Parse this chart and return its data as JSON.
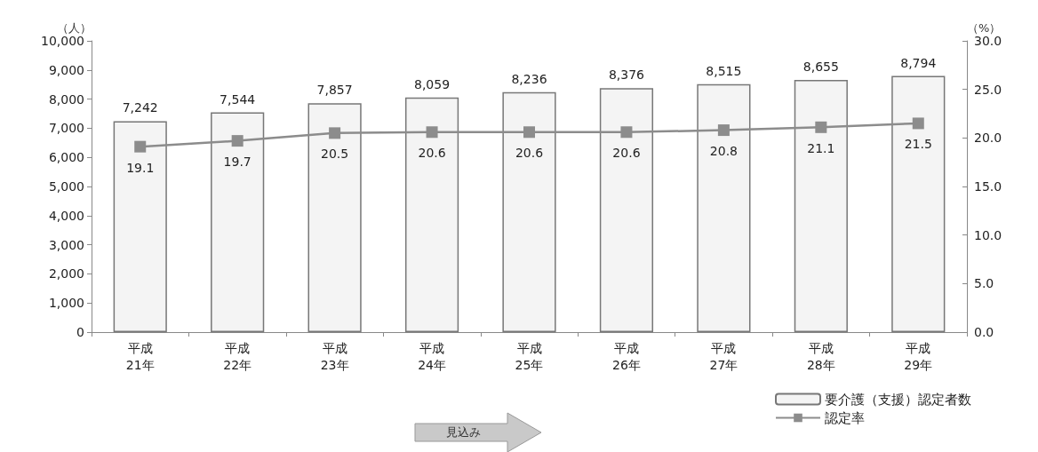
{
  "chart_data": {
    "type": "bar",
    "ylabel": "（人）",
    "y2label": "（%）",
    "categories": [
      "平成\n21年",
      "平成\n22年",
      "平成\n23年",
      "平成\n24年",
      "平成\n25年",
      "平成\n26年",
      "平成\n27年",
      "平成\n28年",
      "平成\n29年"
    ],
    "series": [
      {
        "name": "要介護（支援）認定者数",
        "color": "#f4f4f4",
        "values": [
          7242,
          7544,
          7857,
          8059,
          8236,
          8376,
          8515,
          8655,
          8794
        ],
        "value_labels": [
          "7,242",
          "7,544",
          "7,857",
          "8,059",
          "8,236",
          "8,376",
          "8,515",
          "8,655",
          "8,794"
        ]
      },
      {
        "name": "認定率",
        "type": "line",
        "axis": "y2",
        "color": "#8c8c8c",
        "values": [
          19.1,
          19.7,
          20.5,
          20.6,
          20.6,
          20.6,
          20.8,
          21.1,
          21.5
        ]
      }
    ],
    "data_labels": true,
    "marker": "square",
    "legend": "bottom right",
    "grid": false,
    "ylim": [
      0,
      10000
    ],
    "yticks": [
      {
        "value": 0,
        "label": "0"
      },
      {
        "value": 1000,
        "label": "1,000"
      },
      {
        "value": 2000,
        "label": "2,000"
      },
      {
        "value": 3000,
        "label": "3,000"
      },
      {
        "value": 4000,
        "label": "4,000"
      },
      {
        "value": 5000,
        "label": "5,000"
      },
      {
        "value": 6000,
        "label": "6,000"
      },
      {
        "value": 7000,
        "label": "7,000"
      },
      {
        "value": 8000,
        "label": "8,000"
      },
      {
        "value": 9000,
        "label": "9,000"
      },
      {
        "value": 10000,
        "label": "10,000"
      }
    ],
    "y2lim": [
      0,
      30
    ],
    "y2ticks": [
      {
        "value": 0,
        "label": "0.0"
      },
      {
        "value": 5,
        "label": "5.0"
      },
      {
        "value": 10,
        "label": "10.0"
      },
      {
        "value": 15,
        "label": "15.0"
      },
      {
        "value": 20,
        "label": "20.0"
      },
      {
        "value": 25,
        "label": "25.0"
      },
      {
        "value": 30,
        "label": "30.0"
      }
    ],
    "annotations": [
      "見込み"
    ]
  }
}
